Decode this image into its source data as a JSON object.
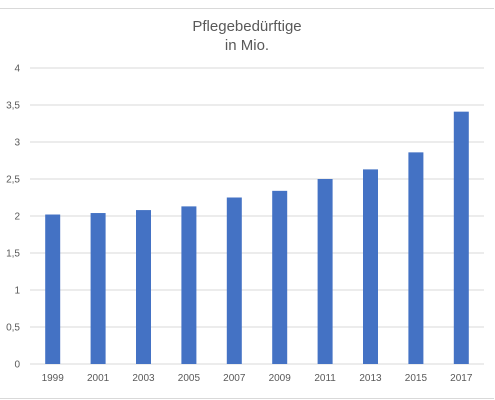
{
  "chart_data": {
    "type": "bar",
    "title_lines": [
      "Pflegebedürftige",
      "in Mio."
    ],
    "categories": [
      "1999",
      "2001",
      "2003",
      "2005",
      "2007",
      "2009",
      "2011",
      "2013",
      "2015",
      "2017"
    ],
    "series": [
      {
        "values": [
          2.02,
          2.04,
          2.08,
          2.13,
          2.25,
          2.34,
          2.5,
          2.63,
          2.86,
          3.41
        ]
      }
    ],
    "ylim": [
      0,
      4
    ],
    "yticks": [
      0,
      0.5,
      1,
      1.5,
      2,
      2.5,
      3,
      3.5,
      4
    ],
    "ytick_labels": [
      "0",
      "0,5",
      "1",
      "1,5",
      "2",
      "2,5",
      "3",
      "3,5",
      "4"
    ],
    "xlabel": "",
    "ylabel": "",
    "grid": true,
    "legend": "none",
    "bar_color": "#4472c4"
  }
}
